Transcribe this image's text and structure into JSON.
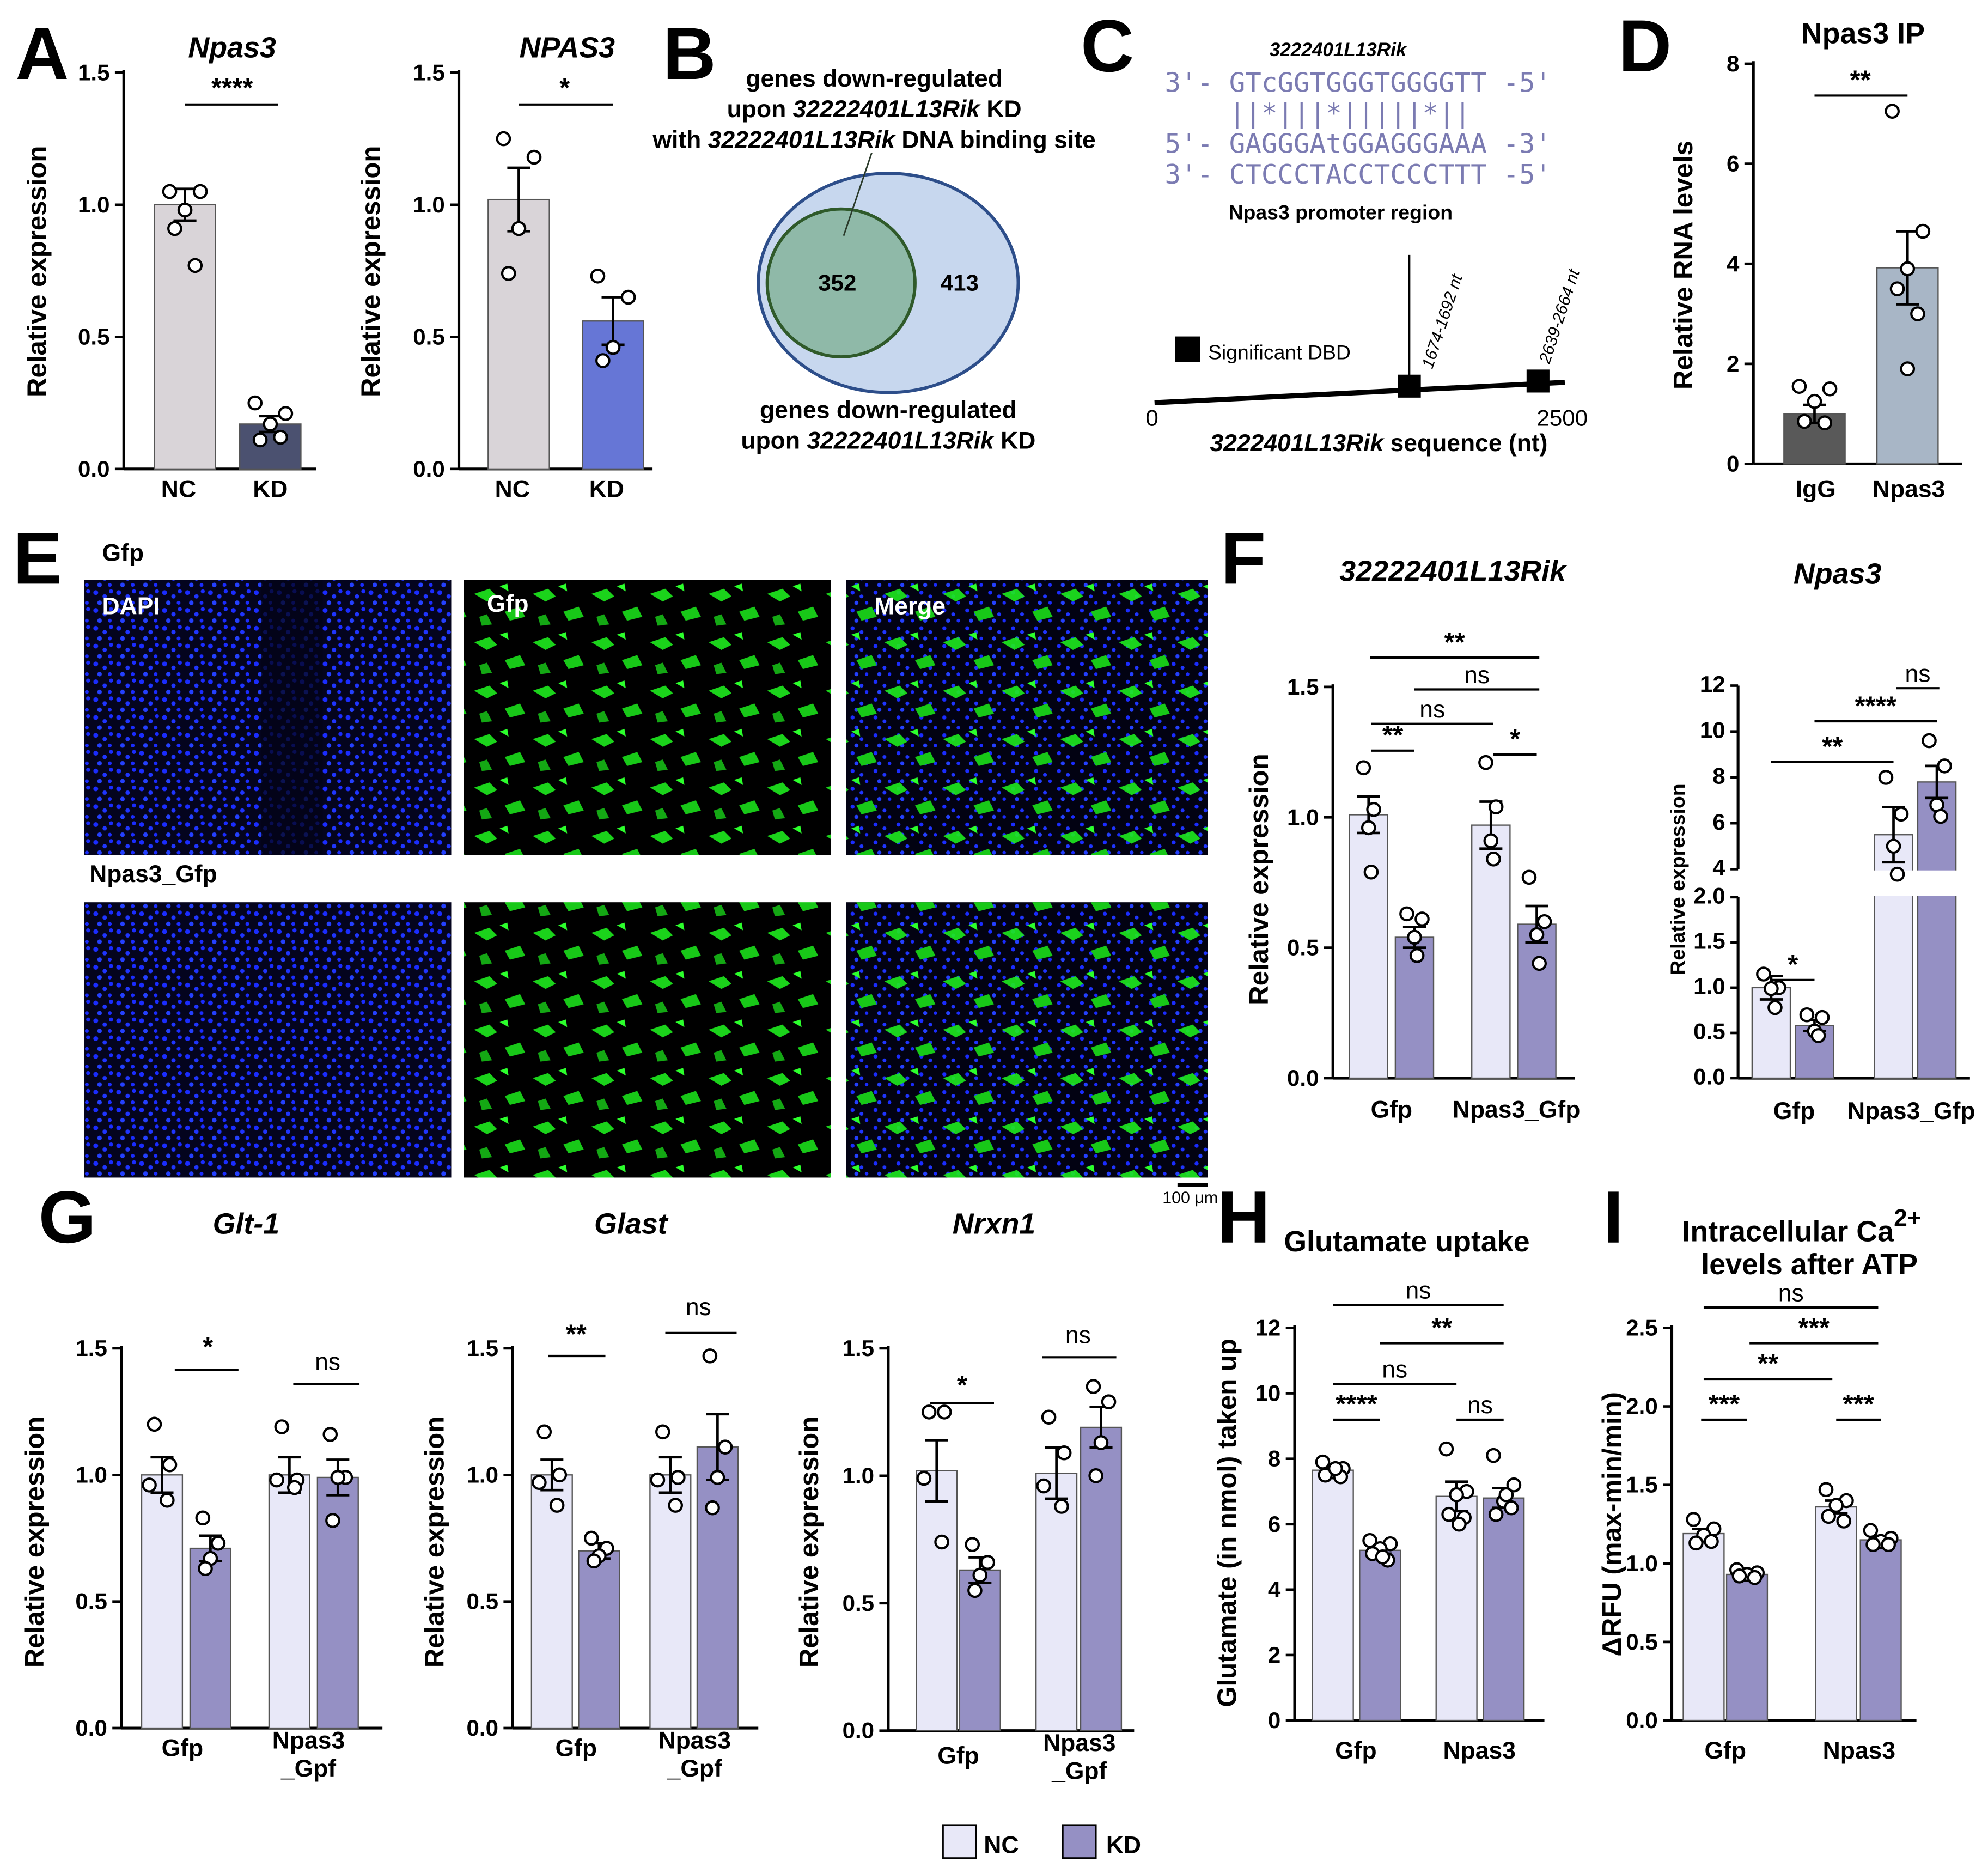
{
  "colors": {
    "nc_gray": "#d9d4d8",
    "kd_slate": "#4b5170",
    "kd_blue": "#6676d6",
    "igg_dark": "#595959",
    "npas3_ip": "#a8b6c6",
    "nc_light": "#e8e8f8",
    "kd_purple": "#9590c4",
    "venn_outer": "#c7d7ee",
    "venn_inner": "#8fb9a8",
    "venn_outer_stroke": "#2d4e8a",
    "venn_inner_stroke": "#2f5a2a",
    "dapi": "#1a2cff",
    "gfp": "#1eea1e"
  },
  "panel_letters": [
    "A",
    "B",
    "C",
    "D",
    "E",
    "F",
    "G",
    "H",
    "I"
  ],
  "panelA": {
    "chart1": {
      "type": "bar",
      "title": "Npas3",
      "ylabel": "Relative expression",
      "ylim": [
        0,
        1.5
      ],
      "yticks": [
        "0.0",
        "0.5",
        "1.0",
        "1.5"
      ],
      "categories": [
        "NC",
        "KD"
      ],
      "values": [
        1.0,
        0.17
      ],
      "errors": [
        0.06,
        0.03
      ],
      "points": [
        [
          1.05,
          1.05,
          0.98,
          0.91,
          0.77
        ],
        [
          0.25,
          0.21,
          0.17,
          0.11,
          0.12
        ]
      ],
      "significance": "****"
    },
    "chart2": {
      "type": "bar",
      "title": "NPAS3",
      "ylabel": "Relative expression",
      "ylim": [
        0,
        1.5
      ],
      "yticks": [
        "0.0",
        "0.5",
        "1.0",
        "1.5"
      ],
      "categories": [
        "NC",
        "KD"
      ],
      "values": [
        1.02,
        0.56
      ],
      "errors": [
        0.12,
        0.09
      ],
      "points": [
        [
          1.25,
          1.18,
          0.91,
          0.74
        ],
        [
          0.73,
          0.65,
          0.46,
          0.41
        ]
      ],
      "significance": "*"
    }
  },
  "panelB": {
    "top_line1": "genes down-regulated",
    "top_line2a": "upon ",
    "top_line2b": "32222401L13Rik",
    "top_line2c": " KD",
    "top_line3a": "with ",
    "top_line3b": "32222401L13Rik",
    "top_line3c": " DNA binding site",
    "inner_count": "352",
    "outer_count": "413",
    "bottom_line1": "genes down-regulated",
    "bottom_line2a": "upon ",
    "bottom_line2b": "32222401L13Rik",
    "bottom_line2c": " KD"
  },
  "panelC": {
    "gene_label": "3222401L13Rik",
    "seq1": "3'- GTcGGTGGGTGGGGTT -5'",
    "seq_match": "    ||*|||*|||||*||",
    "seq2": "5'- GAGGGAtGGAGGGAAA -3'",
    "seq3": "3'- CTCCCTACCTCCCTTT -5'",
    "promoter_label": "Npas3 promoter region",
    "legend_label": "Significant DBD",
    "site1": "1674-1692 nt",
    "site2": "2639-2664 nt",
    "axis_start": "0",
    "axis_end": "2500",
    "axis_title_italic": "3222401L13Rik",
    "axis_title_rest": " sequence (nt)"
  },
  "panelD": {
    "type": "bar",
    "title": "Npas3 IP",
    "ylabel": "Relative RNA levels",
    "ylim": [
      0,
      8
    ],
    "yticks": [
      "0",
      "2",
      "4",
      "6",
      "8"
    ],
    "categories": [
      "IgG",
      "Npas3"
    ],
    "values": [
      1.0,
      3.92
    ],
    "errors": [
      0.18,
      0.73
    ],
    "points": [
      [
        1.55,
        1.5,
        1.25,
        0.85,
        0.82
      ],
      [
        7.05,
        4.65,
        3.9,
        3.5,
        3.0,
        1.9
      ]
    ],
    "significance": "**"
  },
  "panelE": {
    "row1_label": "Gfp",
    "row2_label": "Npas3_Gfp",
    "col_labels": [
      "DAPI",
      "Gfp",
      "Merge"
    ],
    "scale_bar": "100 μm"
  },
  "panelF": {
    "chart1": {
      "type": "bar",
      "title": "32222401L13Rik",
      "ylabel": "Relative expression",
      "ylim": [
        0,
        1.5
      ],
      "yticks": [
        "0.0",
        "0.5",
        "1.0",
        "1.5"
      ],
      "categories": [
        "Gfp",
        "Npas3_Gfp"
      ],
      "series": [
        {
          "name": "NC",
          "values": [
            1.01,
            0.97
          ],
          "errors": [
            0.07,
            0.09
          ],
          "points": [
            [
              1.19,
              1.03,
              0.96,
              0.79
            ],
            [
              1.21,
              1.04,
              0.91,
              0.84
            ]
          ]
        },
        {
          "name": "KD",
          "values": [
            0.54,
            0.59
          ],
          "errors": [
            0.04,
            0.07
          ],
          "points": [
            [
              0.63,
              0.61,
              0.54,
              0.47
            ],
            [
              0.77,
              0.6,
              0.55,
              0.44
            ]
          ]
        }
      ],
      "comparisons": [
        "**",
        "ns",
        "ns",
        "**",
        "*"
      ]
    },
    "chart2": {
      "type": "bar",
      "title": "Npas3",
      "ylabel": "Relative expression",
      "ylim_low": [
        0,
        2.0
      ],
      "ylim_high": [
        4,
        12
      ],
      "yticks_low": [
        "0.0",
        "0.5",
        "1.0",
        "1.5",
        "2.0"
      ],
      "yticks_high": [
        "4",
        "6",
        "8",
        "10",
        "12"
      ],
      "categories": [
        "Gfp",
        "Npas3_Gfp"
      ],
      "series": [
        {
          "name": "NC",
          "values": [
            1.0,
            5.5
          ],
          "errors": [
            0.13,
            1.2
          ],
          "points": [
            [
              1.15,
              1.0,
              0.99,
              0.78
            ],
            [
              8.0,
              6.4,
              5.0,
              2.6
            ]
          ]
        },
        {
          "name": "KD",
          "values": [
            0.58,
            7.8
          ],
          "errors": [
            0.06,
            0.7
          ],
          "points": [
            [
              0.7,
              0.67,
              0.52,
              0.47
            ],
            [
              9.6,
              8.5,
              6.8,
              6.3
            ]
          ]
        }
      ],
      "comparisons": [
        "ns",
        "****",
        "**",
        "*"
      ]
    }
  },
  "panelG": {
    "charts": [
      {
        "type": "bar",
        "title": "Glt-1",
        "ylabel": "Relative expression",
        "ylim": [
          0,
          1.5
        ],
        "yticks": [
          "0.0",
          "0.5",
          "1.0",
          "1.5"
        ],
        "cat1": "Gfp",
        "cat2_line1": "Npas3",
        "cat2_line2": "_Gpf",
        "series": [
          {
            "name": "NC",
            "values": [
              1.0,
              1.0
            ],
            "errors": [
              0.07,
              0.07
            ],
            "points": [
              [
                1.2,
                1.04,
                0.96,
                0.9
              ],
              [
                1.19,
                0.98,
                0.98,
                0.95
              ]
            ]
          },
          {
            "name": "KD",
            "values": [
              0.71,
              0.99
            ],
            "errors": [
              0.05,
              0.07
            ],
            "points": [
              [
                0.83,
                0.73,
                0.67,
                0.63
              ],
              [
                1.16,
                0.99,
                0.99,
                0.82
              ]
            ]
          }
        ],
        "sig_left": "*",
        "sig_right": "ns"
      },
      {
        "type": "bar",
        "title": "Glast",
        "ylabel": "Relative expression",
        "ylim": [
          0,
          1.5
        ],
        "yticks": [
          "0.0",
          "0.5",
          "1.0",
          "1.5"
        ],
        "cat1": "Gfp",
        "cat2_line1": "Npas3",
        "cat2_line2": "_Gpf",
        "series": [
          {
            "name": "NC",
            "values": [
              1.0,
              1.0
            ],
            "errors": [
              0.06,
              0.07
            ],
            "points": [
              [
                1.17,
                1.0,
                0.97,
                0.88
              ],
              [
                1.17,
                0.99,
                0.98,
                0.88
              ]
            ]
          },
          {
            "name": "KD",
            "values": [
              0.7,
              1.11
            ],
            "errors": [
              0.03,
              0.13
            ],
            "points": [
              [
                0.75,
                0.71,
                0.68,
                0.66
              ],
              [
                1.47,
                1.11,
                0.99,
                0.87
              ]
            ]
          }
        ],
        "sig_left": "**",
        "sig_right": "ns"
      },
      {
        "type": "bar",
        "title": "Nrxn1",
        "ylabel": "Relative expression",
        "ylim": [
          0,
          1.5
        ],
        "yticks": [
          "0.0",
          "0.5",
          "1.0",
          "1.5"
        ],
        "cat1": "Gfp",
        "cat2_line1": "Npas3",
        "cat2_line2": "_Gpf",
        "series": [
          {
            "name": "NC",
            "values": [
              1.02,
              1.01
            ],
            "errors": [
              0.12,
              0.1
            ],
            "points": [
              [
                1.25,
                1.25,
                0.99,
                0.74
              ],
              [
                1.23,
                1.09,
                0.96,
                0.88
              ]
            ]
          },
          {
            "name": "KD",
            "values": [
              0.63,
              1.19
            ],
            "errors": [
              0.05,
              0.08
            ],
            "points": [
              [
                0.73,
                0.66,
                0.61,
                0.55
              ],
              [
                1.35,
                1.29,
                1.13,
                1.0
              ]
            ]
          }
        ],
        "sig_left": "*",
        "sig_right": "ns"
      }
    ]
  },
  "panelH": {
    "type": "bar",
    "title": "Glutamate uptake",
    "ylabel": "Glutamate (in nmol) taken up",
    "ylim": [
      0,
      12
    ],
    "yticks": [
      "0",
      "2",
      "4",
      "6",
      "8",
      "10",
      "12"
    ],
    "categories": [
      "Gfp",
      "Npas3"
    ],
    "series": [
      {
        "name": "NC",
        "values": [
          7.65,
          6.85
        ],
        "errors": [
          0.1,
          0.45
        ],
        "points": [
          [
            7.9,
            7.7,
            7.6,
            7.5,
            7.45,
            7.7
          ],
          [
            8.3,
            7.0,
            6.9,
            6.3,
            6.2,
            6.0
          ]
        ]
      },
      {
        "name": "KD",
        "values": [
          5.2,
          6.8
        ],
        "errors": [
          0.1,
          0.3
        ],
        "points": [
          [
            5.5,
            5.4,
            5.25,
            5.1,
            4.9,
            5.0
          ],
          [
            8.1,
            7.2,
            6.7,
            6.3,
            6.5,
            6.9
          ]
        ]
      }
    ],
    "comparisons": [
      "ns",
      "**",
      "ns",
      "****",
      "ns"
    ]
  },
  "panelI": {
    "type": "bar",
    "title_line1": "Intracellular Ca",
    "title_sup": "2+",
    "title_line2": "levels after ATP",
    "ylabel": "ΔRFU (max-min/min)",
    "ylim": [
      0,
      2.5
    ],
    "yticks": [
      "0.0",
      "0.5",
      "1.0",
      "1.5",
      "2.0",
      "2.5"
    ],
    "categories": [
      "Gfp",
      "Npas3"
    ],
    "series": [
      {
        "name": "NC",
        "values": [
          1.19,
          1.36
        ],
        "errors": [
          0.03,
          0.04
        ],
        "points": [
          [
            1.28,
            1.22,
            1.18,
            1.13,
            1.14
          ],
          [
            1.47,
            1.4,
            1.37,
            1.3,
            1.27
          ]
        ]
      },
      {
        "name": "KD",
        "values": [
          0.93,
          1.15
        ],
        "errors": [
          0.01,
          0.02
        ],
        "points": [
          [
            0.96,
            0.94,
            0.93,
            0.92,
            0.91
          ],
          [
            1.21,
            1.16,
            1.14,
            1.12,
            1.12
          ]
        ]
      }
    ],
    "comparisons": [
      "ns",
      "***",
      "**",
      "***",
      "***"
    ]
  },
  "legend": {
    "nc_label": "NC",
    "kd_label": "KD"
  }
}
